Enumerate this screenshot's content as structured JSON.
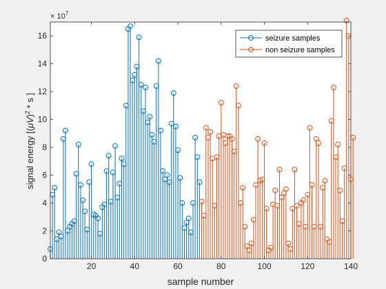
{
  "chart_data": {
    "type": "stem",
    "xlabel": "sample number",
    "ylabel_parts": [
      "signal energy [(",
      "μV",
      ")",
      "2",
      " * s ]"
    ],
    "exponent_label": {
      "base": "× 10",
      "power": "7"
    },
    "xlim": [
      1,
      140
    ],
    "ylim": [
      0,
      17
    ],
    "xticks": [
      20,
      40,
      60,
      80,
      100,
      120,
      140
    ],
    "yticks": [
      0,
      2,
      4,
      6,
      8,
      10,
      12,
      14,
      16
    ],
    "legend_position": "top-right",
    "series": [
      {
        "name": "seizure samples",
        "color": "#0072bd",
        "x_start": 1,
        "values": [
          0.7,
          4.6,
          5.1,
          1.4,
          1.9,
          1.6,
          8.6,
          9.2,
          2.0,
          2.3,
          2.5,
          2.7,
          6.1,
          8.2,
          5.3,
          4.2,
          3.4,
          2.1,
          5.5,
          6.8,
          3.2,
          3.1,
          2.9,
          1.8,
          3.7,
          3.9,
          6.3,
          7.4,
          4.1,
          6.2,
          8.1,
          4.4,
          5.4,
          7.2,
          6.8,
          11.0,
          16.5,
          16.7,
          12.8,
          13.2,
          13.8,
          15.9,
          12.5,
          10.6,
          12.3,
          9.8,
          10.2,
          8.9,
          8.4,
          12.4,
          14.2,
          9.2,
          6.3,
          5.7,
          6.0,
          5.5,
          9.7,
          11.9,
          9.5,
          7.8,
          5.8,
          4.0,
          2.2,
          2.6,
          2.9,
          1.9,
          4.0,
          8.7,
          7.3,
          5.5
        ]
      },
      {
        "name": "non seizure samples",
        "color": "#d95319",
        "x_start": 71,
        "values": [
          4.1,
          3.1,
          9.4,
          8.7,
          9.1,
          7.2,
          3.8,
          7.3,
          8.8,
          11.2,
          8.9,
          8.3,
          8.8,
          8.8,
          8.6,
          7.7,
          12.4,
          11.0,
          4.0,
          5.1,
          2.3,
          0.9,
          0.6,
          1.1,
          2.8,
          5.3,
          8.6,
          5.6,
          5.7,
          8.3,
          3.6,
          0.6,
          0.8,
          3.9,
          4.9,
          3.8,
          6.4,
          4.4,
          4.7,
          5.0,
          1.1,
          0.7,
          3.6,
          6.4,
          3.8,
          2.5,
          4.0,
          4.2,
          2.3,
          4.6,
          9.4,
          5.3,
          2.3,
          8.6,
          8.3,
          2.3,
          5.1,
          5.6,
          1.4,
          1.2,
          9.9,
          12.3,
          7.3,
          8.2,
          4.9,
          2.7,
          6.5,
          17.1,
          16.0,
          5.7,
          8.7
        ]
      }
    ]
  }
}
